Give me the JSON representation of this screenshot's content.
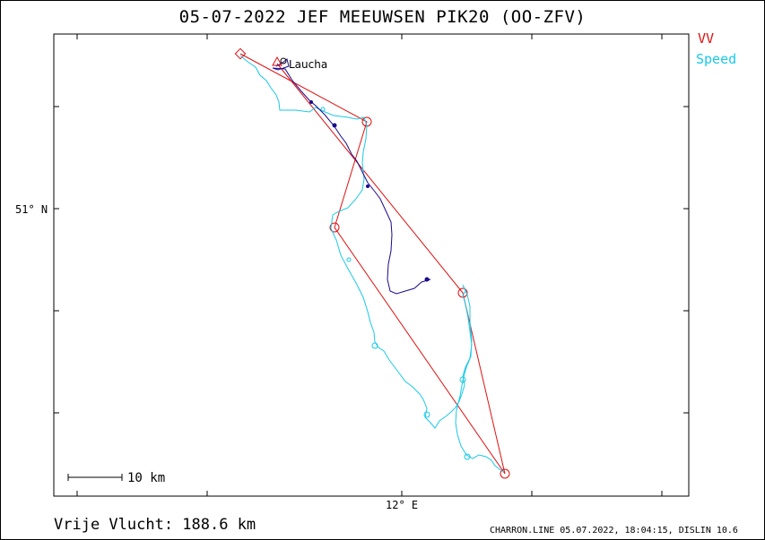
{
  "title": "05-07-2022   JEF MEEUWSEN   PIK20 (OO-ZFV)",
  "legend": {
    "vv": {
      "label": "VV",
      "color": "#e01010"
    },
    "speed": {
      "label": "Speed",
      "color": "#19c9e6"
    }
  },
  "axes": {
    "latitude_label": "51° N",
    "longitude_label": "12° E"
  },
  "waypoint_label": "Laucha",
  "scale_label": "10 km",
  "distance_text": "Vrije Vlucht:  188.6 km",
  "footer_text": "CHARRON.LINE 05.07.2022, 18:04:15, DISLIN 10.6",
  "colors": {
    "task": "#e01010",
    "track_speed": "#19c9e6",
    "track_climb": "#1a0a8c"
  }
}
